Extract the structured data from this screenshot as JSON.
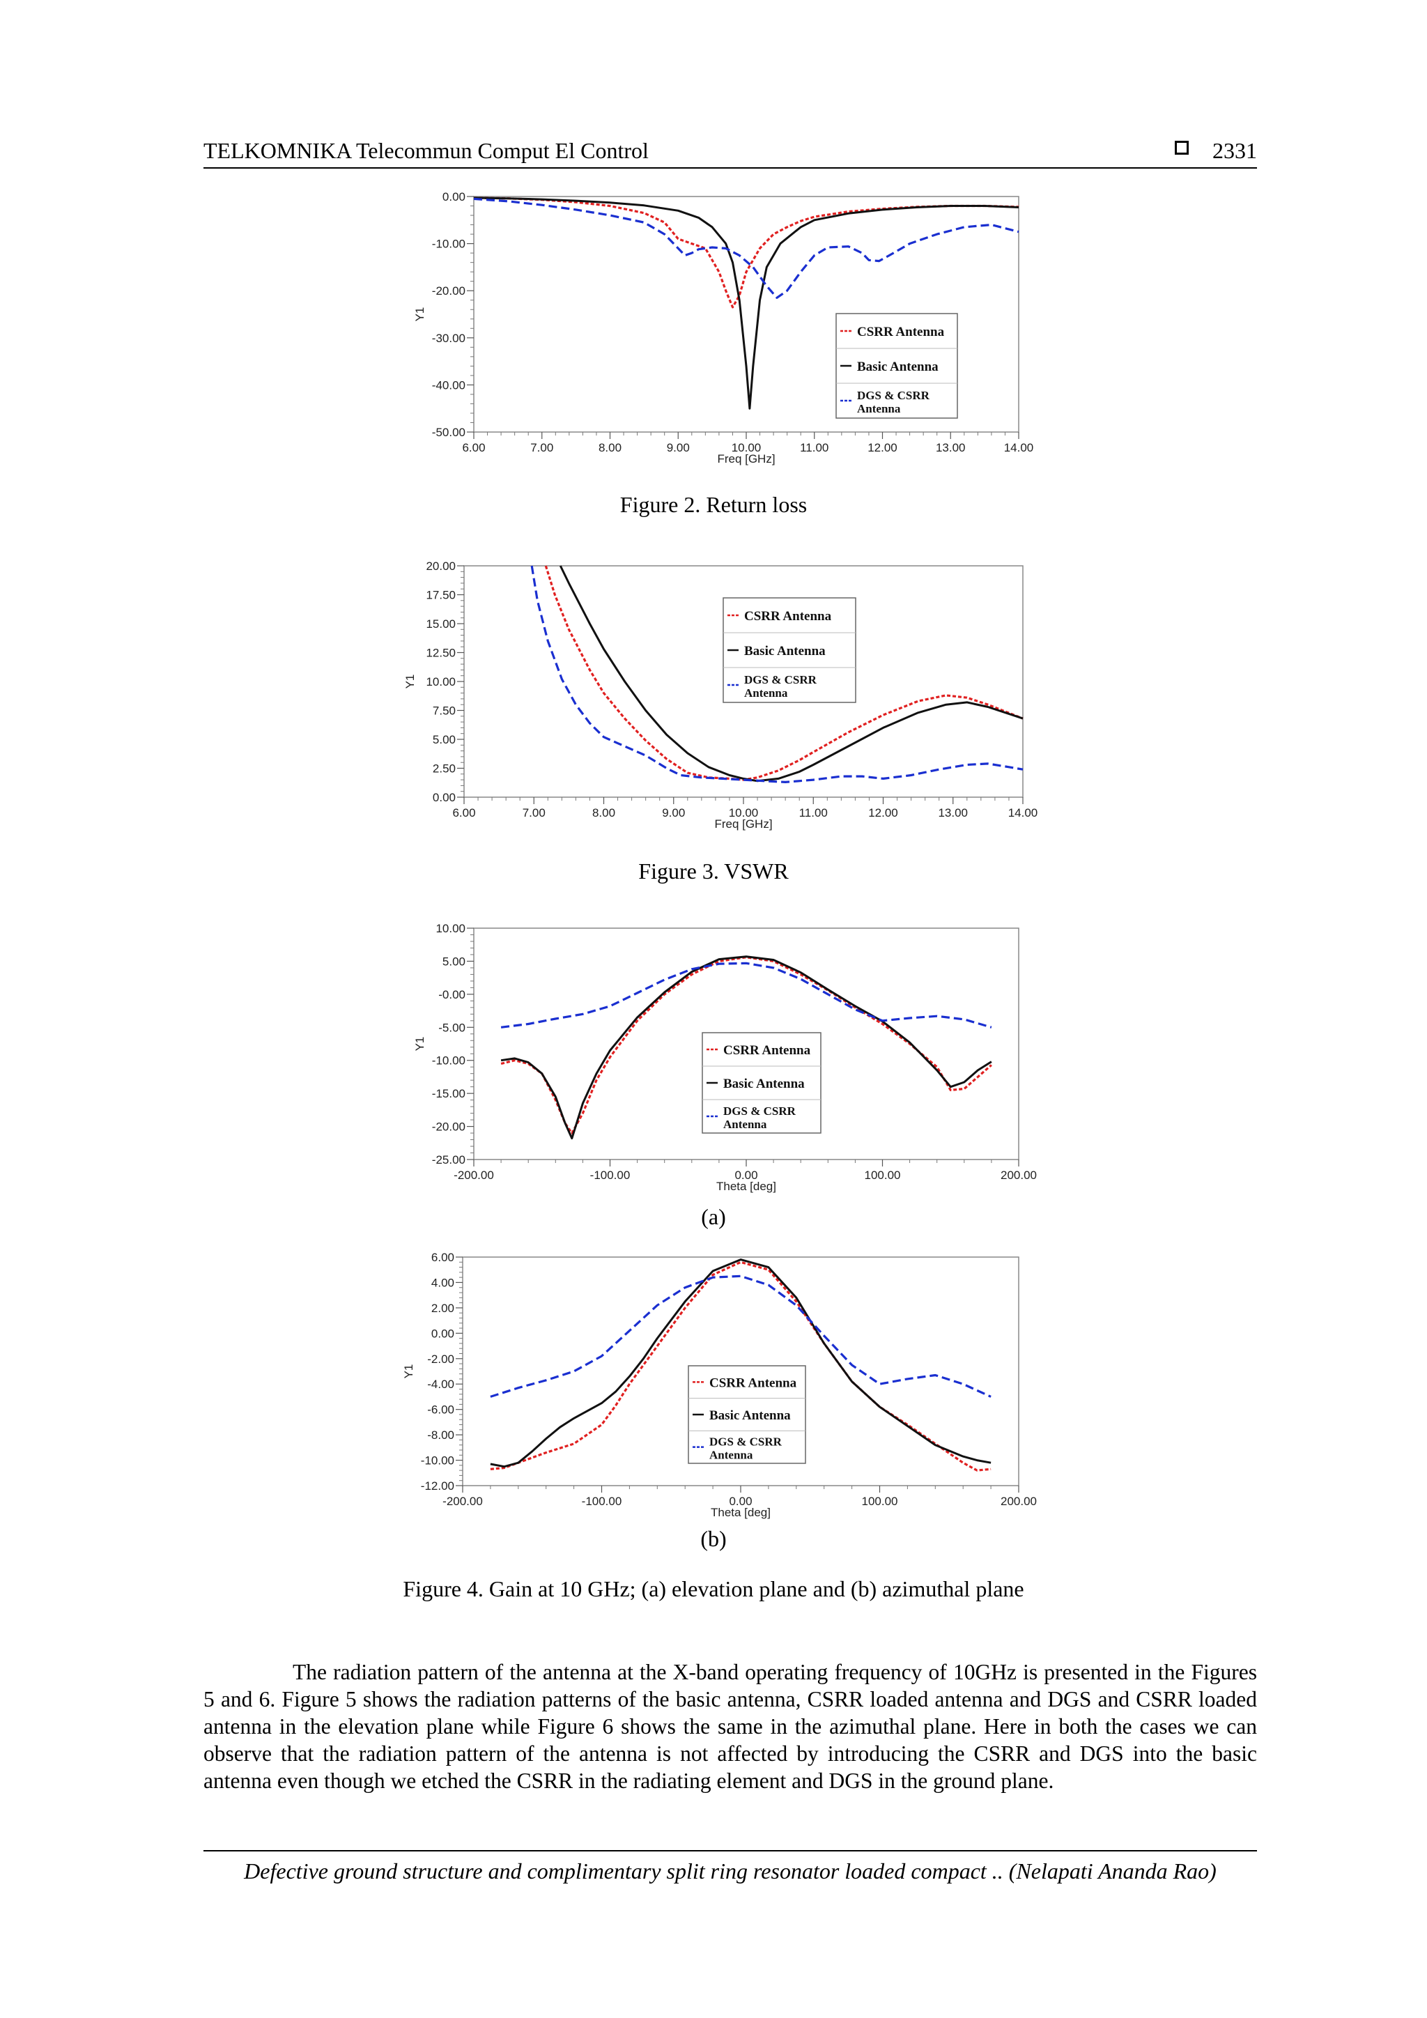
{
  "header": {
    "journal": "TELKOMNIKA Telecommun Comput El Control",
    "page": "2331"
  },
  "figures": [
    {
      "caption": "Figure 2. Return loss",
      "subcaption": ""
    },
    {
      "caption": "Figure 3. VSWR",
      "subcaption": ""
    },
    {
      "caption": "",
      "subcaption": "(a)"
    },
    {
      "caption": "Figure 4. Gain at 10 GHz; (a) elevation plane and (b) azimuthal plane",
      "subcaption": "(b)"
    }
  ],
  "chart_data": [
    {
      "type": "line",
      "xlabel": "Freq [GHz]",
      "ylabel": "Y1",
      "xlim": [
        6,
        14
      ],
      "ylim": [
        -50,
        0
      ],
      "xticks": [
        6,
        7,
        8,
        9,
        10,
        11,
        12,
        13,
        14
      ],
      "yticks": [
        0,
        -10,
        -20,
        -30,
        -40,
        -50
      ],
      "xtick_labels": [
        "6.00",
        "7.00",
        "8.00",
        "9.00",
        "10.00",
        "11.00",
        "12.00",
        "13.00",
        "14.00"
      ],
      "ytick_labels": [
        "0.00",
        "-10.00",
        "-20.00",
        "-30.00",
        "-40.00",
        "-50.00"
      ],
      "legend_position": "bottom-right",
      "series": [
        {
          "name": "CSRR Antenna",
          "color": "#e02020",
          "dash": "dotted",
          "x": [
            6,
            6.5,
            7,
            7.5,
            8,
            8.5,
            8.8,
            9.0,
            9.2,
            9.4,
            9.6,
            9.7,
            9.8,
            9.9,
            10.0,
            10.2,
            10.4,
            10.6,
            10.8,
            11,
            11.5,
            12,
            12.5,
            13,
            13.5,
            14
          ],
          "y": [
            -0.3,
            -0.4,
            -0.7,
            -1.2,
            -2,
            -3.5,
            -5.5,
            -9,
            -10,
            -11,
            -16,
            -20,
            -23.5,
            -21,
            -16,
            -11,
            -8,
            -6.5,
            -5.2,
            -4.3,
            -3.2,
            -2.6,
            -2.2,
            -2,
            -2,
            -2.2
          ]
        },
        {
          "name": "Basic Antenna",
          "color": "#111111",
          "dash": "solid",
          "x": [
            6,
            6.5,
            7,
            7.5,
            8,
            8.5,
            9,
            9.3,
            9.5,
            9.7,
            9.8,
            9.9,
            10.0,
            10.05,
            10.1,
            10.2,
            10.3,
            10.5,
            10.8,
            11,
            11.5,
            12,
            12.5,
            13,
            13.5,
            14
          ],
          "y": [
            -0.3,
            -0.4,
            -0.6,
            -0.9,
            -1.3,
            -1.9,
            -3,
            -4.5,
            -6.5,
            -10,
            -14,
            -22,
            -36,
            -45,
            -36,
            -22,
            -15,
            -10,
            -6.5,
            -5,
            -3.6,
            -2.8,
            -2.3,
            -2,
            -2,
            -2.3
          ]
        },
        {
          "name": "DGS & CSRR Antenna",
          "color": "#1a2fd0",
          "dash": "dashed",
          "x": [
            6,
            6.5,
            7,
            7.5,
            8,
            8.5,
            8.8,
            9.0,
            9.1,
            9.2,
            9.3,
            9.5,
            9.7,
            9.9,
            10.1,
            10.3,
            10.45,
            10.6,
            10.8,
            11,
            11.2,
            11.5,
            11.7,
            11.8,
            11.95,
            12.1,
            12.4,
            12.8,
            13.2,
            13.6,
            14
          ],
          "y": [
            -0.5,
            -1,
            -1.8,
            -2.8,
            -4,
            -5.5,
            -8,
            -11,
            -12.5,
            -12,
            -11.2,
            -10.8,
            -11,
            -12.5,
            -15,
            -19,
            -21.5,
            -20,
            -16,
            -12.5,
            -10.8,
            -10.6,
            -12,
            -13.5,
            -13.7,
            -12.5,
            -10,
            -8,
            -6.5,
            -6,
            -7.5
          ]
        }
      ]
    },
    {
      "type": "line",
      "xlabel": "Freq [GHz]",
      "ylabel": "Y1",
      "xlim": [
        6,
        14
      ],
      "ylim": [
        0,
        20
      ],
      "xticks": [
        6,
        7,
        8,
        9,
        10,
        11,
        12,
        13,
        14
      ],
      "yticks": [
        0,
        2.5,
        5,
        7.5,
        10,
        12.5,
        15,
        17.5,
        20
      ],
      "xtick_labels": [
        "6.00",
        "7.00",
        "8.00",
        "9.00",
        "10.00",
        "11.00",
        "12.00",
        "13.00",
        "14.00"
      ],
      "ytick_labels": [
        "0.00",
        "2.50",
        "5.00",
        "7.50",
        "10.00",
        "12.50",
        "15.00",
        "17.50",
        "20.00"
      ],
      "legend_position": "top-right",
      "series": [
        {
          "name": "CSRR Antenna",
          "color": "#e02020",
          "dash": "dotted",
          "x": [
            7.17,
            7.3,
            7.5,
            7.8,
            8,
            8.3,
            8.6,
            8.9,
            9.2,
            9.5,
            9.8,
            10.0,
            10.2,
            10.5,
            10.8,
            11,
            11.5,
            12,
            12.5,
            12.9,
            13.2,
            13.5,
            14
          ],
          "y": [
            20,
            17.5,
            14.5,
            11,
            9,
            6.8,
            4.9,
            3.3,
            2.1,
            1.7,
            1.6,
            1.5,
            1.7,
            2.3,
            3.2,
            3.9,
            5.6,
            7.1,
            8.3,
            8.8,
            8.6,
            8,
            6.8
          ]
        },
        {
          "name": "Basic Antenna",
          "color": "#111111",
          "dash": "solid",
          "x": [
            7.38,
            7.5,
            7.8,
            8,
            8.3,
            8.6,
            8.9,
            9.2,
            9.5,
            9.8,
            10.0,
            10.2,
            10.5,
            10.8,
            11,
            11.5,
            12,
            12.5,
            12.9,
            13.2,
            13.5,
            14
          ],
          "y": [
            20,
            18.5,
            15,
            12.8,
            10,
            7.5,
            5.4,
            3.8,
            2.6,
            1.9,
            1.6,
            1.4,
            1.6,
            2.2,
            2.8,
            4.4,
            6,
            7.3,
            8,
            8.2,
            7.8,
            6.8
          ]
        },
        {
          "name": "DGS & CSRR Antenna",
          "color": "#1a2fd0",
          "dash": "dashed",
          "x": [
            6.97,
            7.05,
            7.2,
            7.4,
            7.6,
            7.8,
            8,
            8.3,
            8.6,
            8.9,
            9.1,
            9.4,
            9.7,
            10.0,
            10.3,
            10.6,
            11,
            11.4,
            11.7,
            12,
            12.4,
            12.8,
            13.2,
            13.5,
            13.8,
            14
          ],
          "y": [
            20,
            17,
            13.5,
            10.2,
            8,
            6.4,
            5.2,
            4.4,
            3.6,
            2.5,
            1.9,
            1.7,
            1.6,
            1.5,
            1.4,
            1.3,
            1.5,
            1.8,
            1.8,
            1.6,
            1.9,
            2.4,
            2.8,
            2.9,
            2.6,
            2.4
          ]
        }
      ]
    },
    {
      "type": "line",
      "xlabel": "Theta [deg]",
      "ylabel": "Y1",
      "xlim": [
        -200,
        200
      ],
      "ylim": [
        -25,
        10
      ],
      "xticks": [
        -200,
        -100,
        0,
        100,
        200
      ],
      "yticks": [
        10,
        5,
        0,
        -5,
        -10,
        -15,
        -20,
        -25
      ],
      "xtick_labels": [
        "-200.00",
        "-100.00",
        "0.00",
        "100.00",
        "200.00"
      ],
      "ytick_labels": [
        "10.00",
        "5.00",
        "-0.00",
        "-5.00",
        "-10.00",
        "-15.00",
        "-20.00",
        "-25.00"
      ],
      "legend_position": "bottom-center",
      "series": [
        {
          "name": "CSRR Antenna",
          "color": "#e02020",
          "dash": "dotted",
          "x": [
            -180,
            -170,
            -160,
            -150,
            -140,
            -133,
            -128,
            -120,
            -110,
            -100,
            -80,
            -60,
            -40,
            -20,
            0,
            20,
            40,
            60,
            80,
            100,
            120,
            140,
            150,
            160,
            170,
            180
          ],
          "y": [
            -10.5,
            -10,
            -10.5,
            -12,
            -16,
            -19.5,
            -21,
            -18,
            -13,
            -9.5,
            -4,
            0,
            3,
            5,
            5.6,
            5,
            3,
            0.6,
            -2,
            -4.5,
            -7.5,
            -11,
            -14.5,
            -14.3,
            -12.5,
            -10.7
          ]
        },
        {
          "name": "Basic Antenna",
          "color": "#111111",
          "dash": "solid",
          "x": [
            -180,
            -170,
            -160,
            -150,
            -140,
            -133,
            -128,
            -120,
            -110,
            -100,
            -80,
            -60,
            -40,
            -20,
            0,
            20,
            40,
            60,
            80,
            100,
            120,
            140,
            150,
            160,
            170,
            180
          ],
          "y": [
            -10,
            -9.7,
            -10.3,
            -12,
            -15.5,
            -19.5,
            -21.8,
            -16.5,
            -12,
            -8.5,
            -3.5,
            0.3,
            3.4,
            5.3,
            5.7,
            5.2,
            3.3,
            0.7,
            -1.8,
            -4.1,
            -7.3,
            -11.5,
            -14,
            -13.3,
            -11.5,
            -10.2
          ]
        },
        {
          "name": "DGS & CSRR Antenna",
          "color": "#1a2fd0",
          "dash": "dashed",
          "x": [
            -180,
            -160,
            -140,
            -120,
            -100,
            -80,
            -60,
            -40,
            -20,
            0,
            20,
            40,
            60,
            80,
            100,
            120,
            140,
            160,
            180
          ],
          "y": [
            -5,
            -4.5,
            -3.7,
            -3,
            -1.8,
            0.2,
            2.2,
            3.8,
            4.6,
            4.7,
            4,
            2.3,
            0,
            -2.3,
            -4,
            -3.6,
            -3.3,
            -3.8,
            -5
          ]
        }
      ]
    },
    {
      "type": "line",
      "xlabel": "Theta [deg]",
      "ylabel": "Y1",
      "xlim": [
        -200,
        200
      ],
      "ylim": [
        -12,
        6
      ],
      "xticks": [
        -200,
        -100,
        0,
        100,
        200
      ],
      "yticks": [
        6,
        4,
        2,
        0,
        -2,
        -4,
        -6,
        -8,
        -10,
        -12
      ],
      "xtick_labels": [
        "-200.00",
        "-100.00",
        "0.00",
        "100.00",
        "200.00"
      ],
      "ytick_labels": [
        "6.00",
        "4.00",
        "2.00",
        "0.00",
        "-2.00",
        "-4.00",
        "-6.00",
        "-8.00",
        "-10.00",
        "-12.00"
      ],
      "legend_position": "bottom-center",
      "series": [
        {
          "name": "CSRR Antenna",
          "color": "#e02020",
          "dash": "dotted",
          "x": [
            -180,
            -170,
            -160,
            -150,
            -140,
            -120,
            -100,
            -90,
            -80,
            -70,
            -60,
            -40,
            -20,
            0,
            20,
            40,
            60,
            80,
            100,
            120,
            140,
            160,
            170,
            180
          ],
          "y": [
            -10.7,
            -10.6,
            -10.2,
            -9.8,
            -9.4,
            -8.7,
            -7.2,
            -5.7,
            -4,
            -2.5,
            -1,
            2,
            4.6,
            5.6,
            5,
            2.5,
            -0.8,
            -3.8,
            -5.8,
            -7.2,
            -8.7,
            -10.2,
            -10.8,
            -10.7
          ]
        },
        {
          "name": "Basic Antenna",
          "color": "#111111",
          "dash": "solid",
          "x": [
            -180,
            -170,
            -160,
            -150,
            -140,
            -130,
            -120,
            -100,
            -90,
            -80,
            -70,
            -60,
            -40,
            -20,
            0,
            20,
            40,
            60,
            80,
            100,
            120,
            140,
            160,
            170,
            180
          ],
          "y": [
            -10.3,
            -10.5,
            -10.2,
            -9.3,
            -8.3,
            -7.4,
            -6.7,
            -5.5,
            -4.6,
            -3.4,
            -2,
            -0.4,
            2.5,
            4.9,
            5.8,
            5.2,
            2.8,
            -0.8,
            -3.8,
            -5.8,
            -7.3,
            -8.8,
            -9.7,
            -10,
            -10.2
          ]
        },
        {
          "name": "DGS & CSRR Antenna",
          "color": "#1a2fd0",
          "dash": "dashed",
          "x": [
            -180,
            -160,
            -140,
            -120,
            -100,
            -80,
            -60,
            -40,
            -20,
            0,
            20,
            40,
            60,
            80,
            100,
            120,
            140,
            160,
            180
          ],
          "y": [
            -5,
            -4.3,
            -3.7,
            -3,
            -1.8,
            0.2,
            2.2,
            3.6,
            4.4,
            4.5,
            3.8,
            2.2,
            -0.2,
            -2.5,
            -4,
            -3.6,
            -3.3,
            -4,
            -5
          ]
        }
      ]
    }
  ]
}
